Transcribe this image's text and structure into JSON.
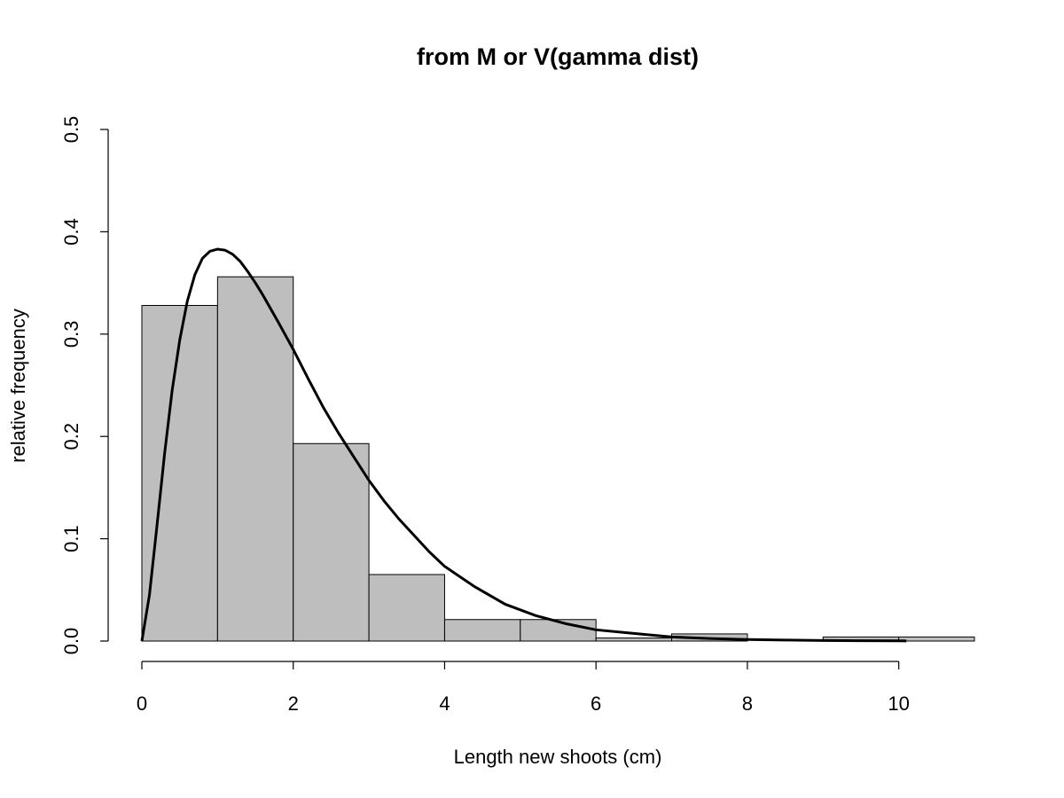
{
  "chart_data": {
    "type": "bar",
    "title": "from M or V(gamma dist)",
    "xlabel": "Length new shoots (cm)",
    "ylabel": "relative frequency",
    "xlim": [
      0,
      11
    ],
    "ylim": [
      0,
      0.5
    ],
    "x_ticks": [
      "0",
      "2",
      "4",
      "6",
      "8",
      "10"
    ],
    "x_tick_values": [
      0,
      2,
      4,
      6,
      8,
      10
    ],
    "y_ticks": [
      "0.0",
      "0.1",
      "0.2",
      "0.3",
      "0.4",
      "0.5"
    ],
    "y_tick_values": [
      0,
      0.1,
      0.2,
      0.3,
      0.4,
      0.5
    ],
    "bins": [
      {
        "x0": 0,
        "x1": 1,
        "value": 0.328
      },
      {
        "x0": 1,
        "x1": 2,
        "value": 0.356
      },
      {
        "x0": 2,
        "x1": 3,
        "value": 0.193
      },
      {
        "x0": 3,
        "x1": 4,
        "value": 0.065
      },
      {
        "x0": 4,
        "x1": 5,
        "value": 0.021
      },
      {
        "x0": 5,
        "x1": 6,
        "value": 0.021
      },
      {
        "x0": 6,
        "x1": 7,
        "value": 0.003
      },
      {
        "x0": 7,
        "x1": 8,
        "value": 0.007
      },
      {
        "x0": 8,
        "x1": 9,
        "value": 0.0
      },
      {
        "x0": 9,
        "x1": 10,
        "value": 0.004
      },
      {
        "x0": 10,
        "x1": 11,
        "value": 0.004
      }
    ],
    "bar_color": "#bebebe",
    "curve": {
      "x": [
        0,
        0.1,
        0.2,
        0.3,
        0.4,
        0.5,
        0.6,
        0.7,
        0.8,
        0.9,
        1.0,
        1.1,
        1.2,
        1.3,
        1.4,
        1.5,
        1.6,
        1.8,
        2.0,
        2.2,
        2.4,
        2.6,
        2.8,
        3.0,
        3.2,
        3.4,
        3.6,
        3.8,
        4.0,
        4.4,
        4.8,
        5.2,
        5.6,
        6.0,
        6.5,
        7.0,
        7.5,
        8.0,
        8.5,
        9.0,
        9.5,
        10.0,
        10.1
      ],
      "y": [
        0,
        0.045,
        0.113,
        0.183,
        0.245,
        0.294,
        0.332,
        0.358,
        0.374,
        0.381,
        0.383,
        0.382,
        0.378,
        0.371,
        0.361,
        0.35,
        0.338,
        0.312,
        0.285,
        0.256,
        0.228,
        0.203,
        0.18,
        0.157,
        0.137,
        0.119,
        0.103,
        0.087,
        0.073,
        0.053,
        0.036,
        0.025,
        0.017,
        0.011,
        0.0075,
        0.004,
        0.0025,
        0.0015,
        0.001,
        0.0005,
        0.0003,
        0.0002,
        0.0001
      ]
    }
  }
}
